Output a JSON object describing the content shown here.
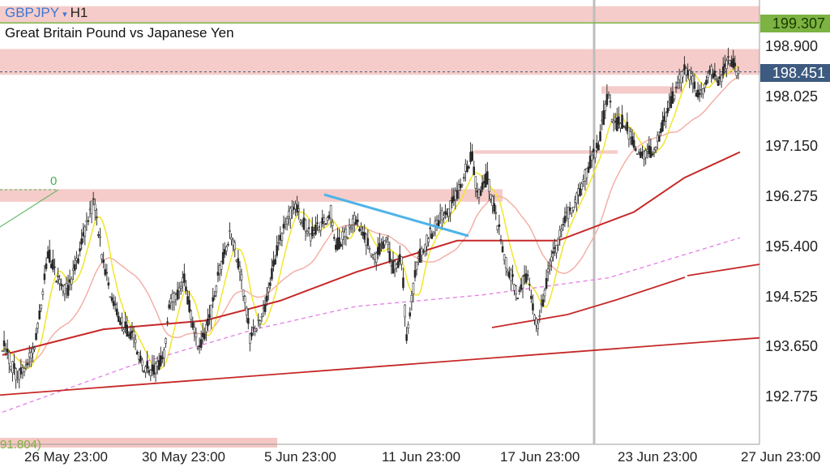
{
  "header": {
    "symbol": "GBPJPY",
    "dropdown_glyph": "▾",
    "timeframe": "H1",
    "description": "Great Britain Pound vs Japanese Yen"
  },
  "price_tags": {
    "line_level": "199.307",
    "current": "198.451"
  },
  "fib_label": "0",
  "bottom_label": "91.804)",
  "colors": {
    "bull_bear_bar": "#222222",
    "zone_fill": "#f4c7c3",
    "ma_fast": "#f2e62a",
    "ma_medium": "#f3b0a8",
    "ma_slow": "#c62828",
    "ma_dashed": "#e57ce6",
    "trendline": "#4fb3e8",
    "level_line": "#7cb342",
    "current_tag_bg": "#3d5a80"
  },
  "chart_data": {
    "type": "candlestick",
    "symbol": "GBPJPY",
    "timeframe": "H1",
    "title": "Great Britain Pound vs Japanese Yen",
    "y_tick_labels": [
      "199.307",
      "198.900",
      "198.025",
      "197.150",
      "196.275",
      "195.400",
      "194.525",
      "193.650",
      "192.775"
    ],
    "y_ticks": [
      198.9,
      198.025,
      197.15,
      196.275,
      195.4,
      194.525,
      193.65,
      192.775
    ],
    "ylim": [
      192.2,
      199.6
    ],
    "x_tick_labels": [
      "26 May 23:00",
      "30 May 23:00",
      "5 Jun 23:00",
      "11 Jun 23:00",
      "17 Jun 23:00",
      "23 Jun 23:00",
      "27 Jun 23:00"
    ],
    "current_price": 198.451,
    "level_line": 199.307,
    "price_path": [
      [
        0,
        193.7
      ],
      [
        3,
        193.1
      ],
      [
        6,
        193.5
      ],
      [
        8,
        194.6
      ],
      [
        9,
        195.3
      ],
      [
        11,
        194.8
      ],
      [
        13,
        194.6
      ],
      [
        15,
        195.2
      ],
      [
        18,
        196.2
      ],
      [
        20,
        195.1
      ],
      [
        22,
        194.4
      ],
      [
        24,
        194.0
      ],
      [
        26,
        193.8
      ],
      [
        28,
        193.3
      ],
      [
        30,
        193.2
      ],
      [
        32,
        193.5
      ],
      [
        33,
        194.4
      ],
      [
        35,
        194.6
      ],
      [
        36,
        194.8
      ],
      [
        38,
        193.9
      ],
      [
        39,
        193.6
      ],
      [
        41,
        194.1
      ],
      [
        43,
        195.0
      ],
      [
        45,
        195.6
      ],
      [
        46,
        195.4
      ],
      [
        48,
        194.5
      ],
      [
        49,
        193.8
      ],
      [
        52,
        194.3
      ],
      [
        54,
        195.2
      ],
      [
        56,
        195.8
      ],
      [
        58,
        196.1
      ],
      [
        59,
        195.9
      ],
      [
        61,
        195.6
      ],
      [
        63,
        195.8
      ],
      [
        65,
        196.0
      ],
      [
        66,
        195.4
      ],
      [
        68,
        195.6
      ],
      [
        70,
        195.9
      ],
      [
        72,
        195.5
      ],
      [
        74,
        195.2
      ],
      [
        76,
        195.6
      ],
      [
        77,
        195.0
      ],
      [
        79,
        195.2
      ],
      [
        80,
        193.8
      ],
      [
        82,
        195.1
      ],
      [
        84,
        195.5
      ],
      [
        86,
        195.8
      ],
      [
        88,
        196.0
      ],
      [
        90,
        196.3
      ],
      [
        92,
        196.8
      ],
      [
        93,
        197.0
      ],
      [
        94,
        196.3
      ],
      [
        96,
        196.6
      ],
      [
        98,
        195.8
      ],
      [
        100,
        195.0
      ],
      [
        102,
        194.6
      ],
      [
        104,
        194.9
      ],
      [
        105,
        194.3
      ],
      [
        106,
        194.0
      ],
      [
        108,
        194.9
      ],
      [
        110,
        195.5
      ],
      [
        112,
        196.0
      ],
      [
        114,
        196.3
      ],
      [
        116,
        196.8
      ],
      [
        118,
        197.2
      ],
      [
        120,
        198.1
      ],
      [
        121,
        197.5
      ],
      [
        123,
        197.6
      ],
      [
        125,
        197.2
      ],
      [
        127,
        197.0
      ],
      [
        129,
        197.1
      ],
      [
        131,
        197.6
      ],
      [
        133,
        198.1
      ],
      [
        135,
        198.5
      ],
      [
        136,
        198.4
      ],
      [
        138,
        198.0
      ],
      [
        140,
        198.5
      ],
      [
        142,
        198.3
      ],
      [
        144,
        198.7
      ],
      [
        146,
        198.4
      ]
    ],
    "indicators": [
      {
        "name": "fast MA",
        "style": "solid",
        "color": "#f2e62a"
      },
      {
        "name": "medium MA",
        "style": "solid",
        "color": "#f3b0a8"
      },
      {
        "name": "slow MA",
        "style": "solid",
        "color": "#c62828"
      },
      {
        "name": "long MA",
        "style": "dashed",
        "color": "#e57ce6"
      }
    ],
    "zones": [
      {
        "from": 199.32,
        "to": 199.6
      },
      {
        "from": 198.4,
        "to": 198.85
      },
      {
        "from": 196.18,
        "to": 196.4
      },
      {
        "from": 197.02,
        "to": 197.08
      },
      {
        "from": 198.07,
        "to": 198.2
      }
    ]
  }
}
